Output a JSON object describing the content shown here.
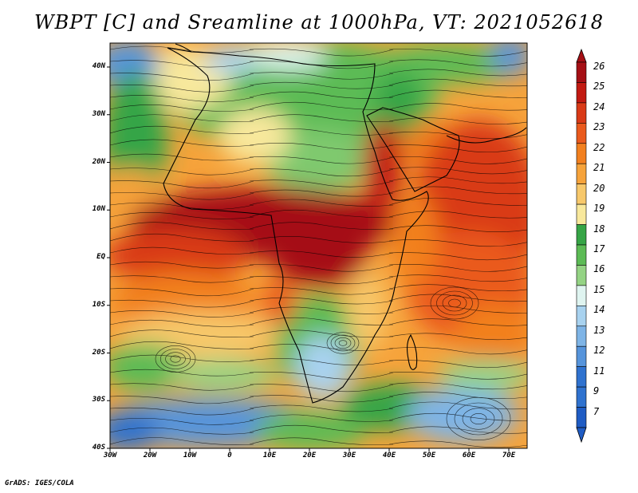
{
  "title": "WBPT [C] and Sreamline at 1000hPa, VT: 2021052618",
  "footer": "GrADS: IGES/COLA",
  "map": {
    "lat_labels": [
      "40N",
      "30N",
      "20N",
      "10N",
      "EQ",
      "10S",
      "20S",
      "30S",
      "40S"
    ],
    "lon_labels": [
      "30W",
      "20W",
      "10W",
      "0",
      "10E",
      "20E",
      "30E",
      "40E",
      "50E",
      "60E",
      "70E"
    ]
  },
  "colorbar": {
    "labels": [
      "26",
      "25",
      "24",
      "23",
      "22",
      "21",
      "20",
      "19",
      "18",
      "17",
      "16",
      "15",
      "14",
      "13",
      "12",
      "11",
      "9",
      "7"
    ],
    "colors": [
      "#a50f15",
      "#c21a12",
      "#d93a17",
      "#ea5a1d",
      "#f2801f",
      "#f6a33b",
      "#f7c86b",
      "#f8e89c",
      "#36a546",
      "#5cbb55",
      "#94d384",
      "#dff4f0",
      "#a8d2ef",
      "#7eb4e6",
      "#5694db",
      "#2f72cf",
      "#2f72cf",
      "#1f5cc4"
    ],
    "top_color": "#a50f15",
    "bottom_color": "#1f5cc4"
  }
}
